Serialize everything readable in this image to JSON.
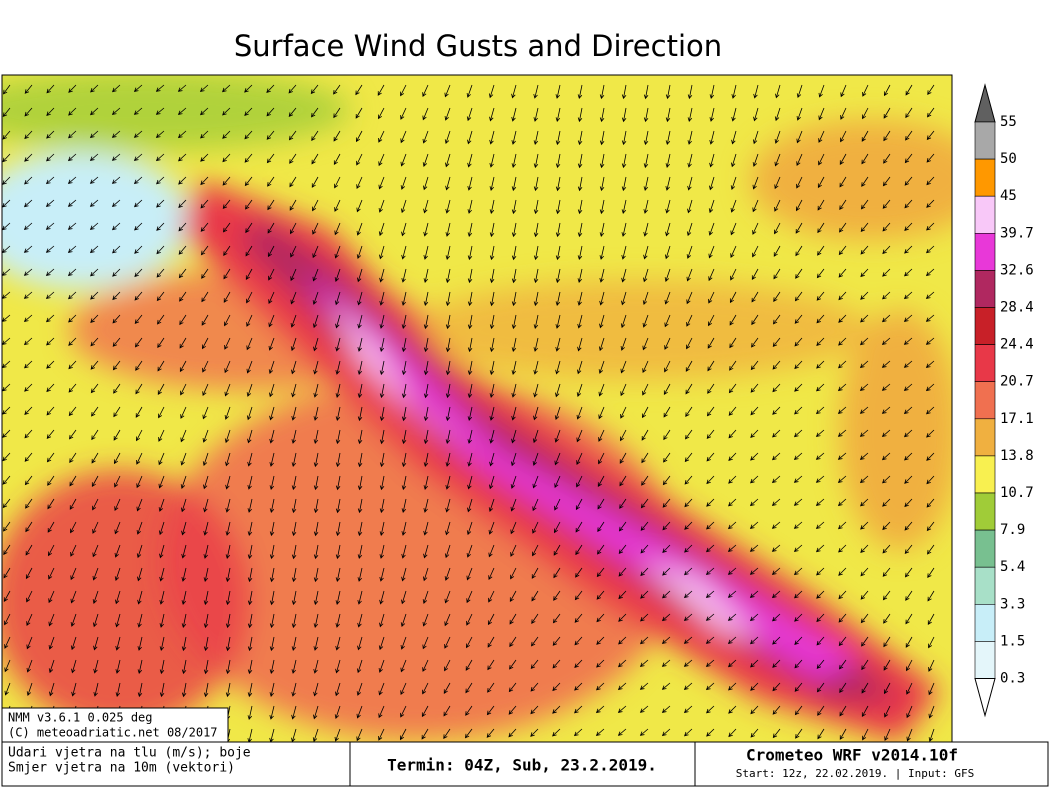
{
  "header": {
    "title": "Surface Wind Gusts and Direction"
  },
  "colorbar": {
    "levels": [
      55,
      50,
      45,
      39.7,
      32.6,
      28.4,
      24.4,
      20.7,
      17.1,
      13.8,
      10.7,
      7.9,
      5.4,
      3.3,
      1.5,
      0.3
    ],
    "colors": [
      "#606060",
      "#a8a8a8",
      "#ff9800",
      "#f8c8f8",
      "#e838d8",
      "#b02860",
      "#c82028",
      "#e83848",
      "#f07050",
      "#f0b040",
      "#f8f050",
      "#a0cc38",
      "#78c090",
      "#a8e0c8",
      "#c8eef8",
      "#e4f6fa",
      "#ffffff"
    ]
  },
  "info": {
    "lines": [
      "NMM v3.6.1 0.025 deg",
      "(C) meteoadriatic.net 08/2017"
    ]
  },
  "footer": {
    "left": [
      "Udari vjetra na tlu (m/s); boje",
      "Smjer vjetra na 10m (vektori)"
    ],
    "center": "Termin: 04Z, Sub, 23.2.2019.",
    "right": [
      "Crometeo WRF v2014.10f",
      "Start: 12z, 22.02.2019. | Input: GFS"
    ]
  }
}
